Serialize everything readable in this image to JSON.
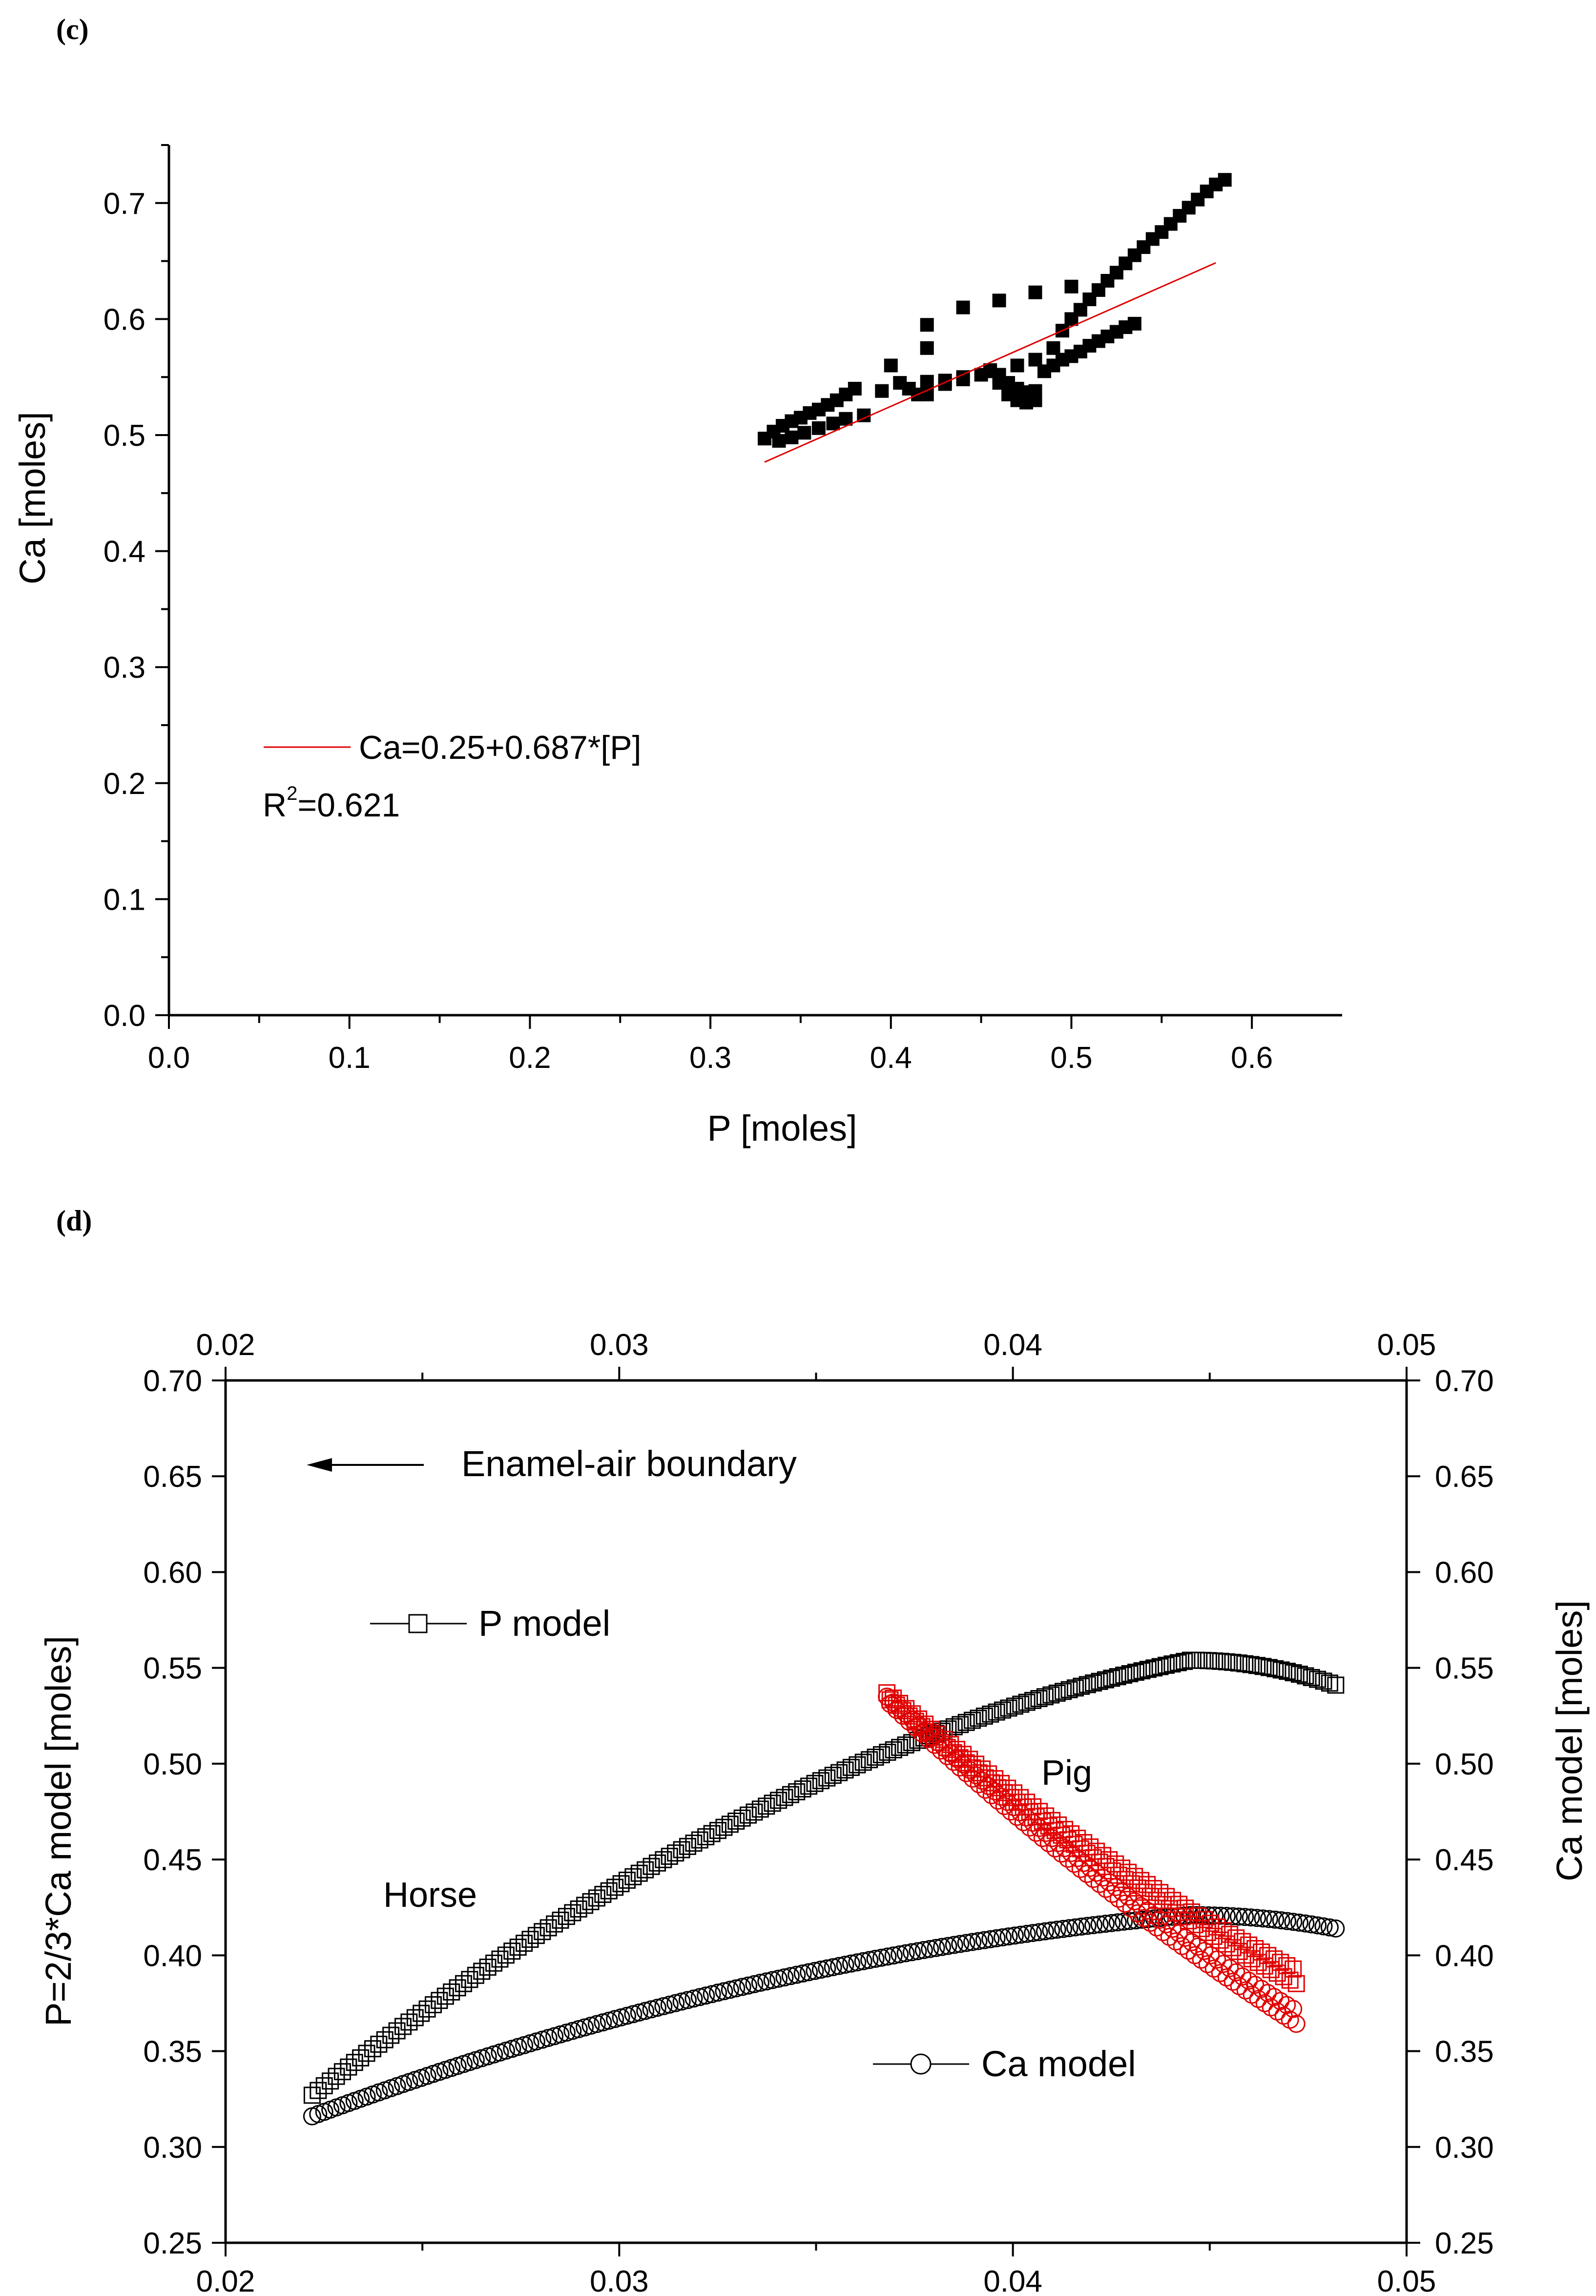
{
  "chart_data": [
    {
      "panel": "(c)",
      "type": "scatter",
      "xlabel": "P [moles]",
      "ylabel": "Ca [moles]",
      "xlim": [
        0.0,
        0.65
      ],
      "ylim": [
        0.0,
        0.75
      ],
      "xticks": [
        "0.0",
        "0.1",
        "0.2",
        "0.3",
        "0.4",
        "0.5",
        "0.6"
      ],
      "yticks": [
        "0.0",
        "0.1",
        "0.2",
        "0.3",
        "0.4",
        "0.5",
        "0.6",
        "0.7"
      ],
      "series": [
        {
          "name": "Ca vs P",
          "marker": "filled-square",
          "color": "#000000",
          "points": [
            [
              0.33,
              0.497
            ],
            [
              0.335,
              0.503
            ],
            [
              0.34,
              0.508
            ],
            [
              0.345,
              0.512
            ],
            [
              0.35,
              0.515
            ],
            [
              0.355,
              0.519
            ],
            [
              0.36,
              0.522
            ],
            [
              0.365,
              0.526
            ],
            [
              0.37,
              0.53
            ],
            [
              0.375,
              0.535
            ],
            [
              0.38,
              0.54
            ],
            [
              0.338,
              0.495
            ],
            [
              0.345,
              0.498
            ],
            [
              0.352,
              0.502
            ],
            [
              0.36,
              0.506
            ],
            [
              0.368,
              0.51
            ],
            [
              0.375,
              0.514
            ],
            [
              0.385,
              0.517
            ],
            [
              0.395,
              0.538
            ],
            [
              0.405,
              0.545
            ],
            [
              0.41,
              0.54
            ],
            [
              0.415,
              0.535
            ],
            [
              0.42,
              0.535
            ],
            [
              0.43,
              0.544
            ],
            [
              0.44,
              0.55
            ],
            [
              0.45,
              0.552
            ],
            [
              0.455,
              0.556
            ],
            [
              0.46,
              0.552
            ],
            [
              0.465,
              0.545
            ],
            [
              0.47,
              0.54
            ],
            [
              0.475,
              0.537
            ],
            [
              0.48,
              0.538
            ],
            [
              0.485,
              0.555
            ],
            [
              0.49,
              0.56
            ],
            [
              0.495,
              0.565
            ],
            [
              0.5,
              0.568
            ],
            [
              0.505,
              0.572
            ],
            [
              0.51,
              0.577
            ],
            [
              0.515,
              0.581
            ],
            [
              0.52,
              0.585
            ],
            [
              0.525,
              0.589
            ],
            [
              0.53,
              0.593
            ],
            [
              0.535,
              0.596
            ],
            [
              0.49,
              0.575
            ],
            [
              0.495,
              0.59
            ],
            [
              0.5,
              0.6
            ],
            [
              0.505,
              0.608
            ],
            [
              0.51,
              0.617
            ],
            [
              0.515,
              0.625
            ],
            [
              0.52,
              0.633
            ],
            [
              0.525,
              0.64
            ],
            [
              0.53,
              0.648
            ],
            [
              0.535,
              0.655
            ],
            [
              0.54,
              0.662
            ],
            [
              0.545,
              0.669
            ],
            [
              0.55,
              0.675
            ],
            [
              0.555,
              0.682
            ],
            [
              0.56,
              0.689
            ],
            [
              0.565,
              0.696
            ],
            [
              0.57,
              0.703
            ],
            [
              0.575,
              0.71
            ],
            [
              0.58,
              0.716
            ],
            [
              0.585,
              0.72
            ],
            [
              0.4,
              0.56
            ],
            [
              0.42,
              0.575
            ],
            [
              0.44,
              0.61
            ],
            [
              0.46,
              0.616
            ],
            [
              0.48,
              0.623
            ],
            [
              0.5,
              0.628
            ],
            [
              0.42,
              0.595
            ],
            [
              0.455,
              0.555
            ],
            [
              0.46,
              0.545
            ],
            [
              0.465,
              0.535
            ],
            [
              0.47,
              0.53
            ],
            [
              0.475,
              0.528
            ],
            [
              0.48,
              0.53
            ],
            [
              0.46,
              0.55
            ],
            [
              0.47,
              0.56
            ],
            [
              0.48,
              0.565
            ],
            [
              0.44,
              0.548
            ],
            [
              0.43,
              0.547
            ],
            [
              0.42,
              0.546
            ]
          ]
        },
        {
          "name": "Ca=0.25+0.687*[P]",
          "type": "fit-line",
          "color": "#e00000",
          "intercept": 0.25,
          "slope": 0.687,
          "x_range": [
            0.33,
            0.58
          ]
        }
      ],
      "legend": {
        "position": "lower-left",
        "line_entry": "Ca=0.25+0.687*[P]",
        "r2_prefix": "R",
        "r2_superscript": "2",
        "r2_value": "=0.621"
      }
    },
    {
      "panel": "(d)",
      "type": "scatter",
      "xlabel": "",
      "ylabel_left": "P=2/3*Ca model [moles]",
      "ylabel_right": "Ca model [moles]",
      "xlim": [
        0.02,
        0.05
      ],
      "ylim": [
        0.25,
        0.7
      ],
      "xticks_bottom": [
        "0.02",
        "0.03",
        "0.04",
        "0.05"
      ],
      "xticks_top": [
        "0.02",
        "0.03",
        "0.04",
        "0.05"
      ],
      "yticks_left": [
        "0.25",
        "0.30",
        "0.35",
        "0.40",
        "0.45",
        "0.50",
        "0.55",
        "0.60",
        "0.65",
        "0.70"
      ],
      "yticks_right": [
        "0.25",
        "0.30",
        "0.35",
        "0.40",
        "0.45",
        "0.50",
        "0.55",
        "0.60",
        "0.65",
        "0.70"
      ],
      "series": [
        {
          "name": "P model (Horse)",
          "marker": "open-square",
          "color": "#000000",
          "x_range": [
            0.0222,
            0.0482
          ],
          "curve": "quadratic",
          "anchor_points": [
            [
              0.0222,
              0.327
            ],
            [
              0.035,
              0.49
            ],
            [
              0.0445,
              0.554
            ],
            [
              0.0482,
              0.541
            ]
          ]
        },
        {
          "name": "Ca model (Horse)",
          "marker": "open-circle",
          "color": "#000000",
          "x_range": [
            0.0222,
            0.0482
          ],
          "curve": "quadratic",
          "anchor_points": [
            [
              0.0222,
              0.316
            ],
            [
              0.035,
              0.392
            ],
            [
              0.0445,
              0.421
            ],
            [
              0.0482,
              0.414
            ]
          ]
        },
        {
          "name": "P model (Pig)",
          "marker": "open-square",
          "color": "#e00000",
          "x_range": [
            0.0368,
            0.0472
          ],
          "curve": "quadratic",
          "anchor_points": [
            [
              0.0368,
              0.537
            ],
            [
              0.042,
              0.456
            ],
            [
              0.0472,
              0.392
            ]
          ]
        },
        {
          "name": "Ca model (Pig)",
          "marker": "open-circle",
          "color": "#e00000",
          "x_range": [
            0.0368,
            0.0472
          ],
          "curve": "quadratic",
          "anchor_points": [
            [
              0.0368,
              0.535
            ],
            [
              0.042,
              0.445
            ],
            [
              0.0472,
              0.371
            ]
          ]
        }
      ],
      "annotations": {
        "arrow_label": "Enamel-air boundary",
        "p_legend": "P model",
        "ca_legend": "Ca model",
        "horse_label": "Horse",
        "pig_label": "Pig"
      }
    }
  ]
}
